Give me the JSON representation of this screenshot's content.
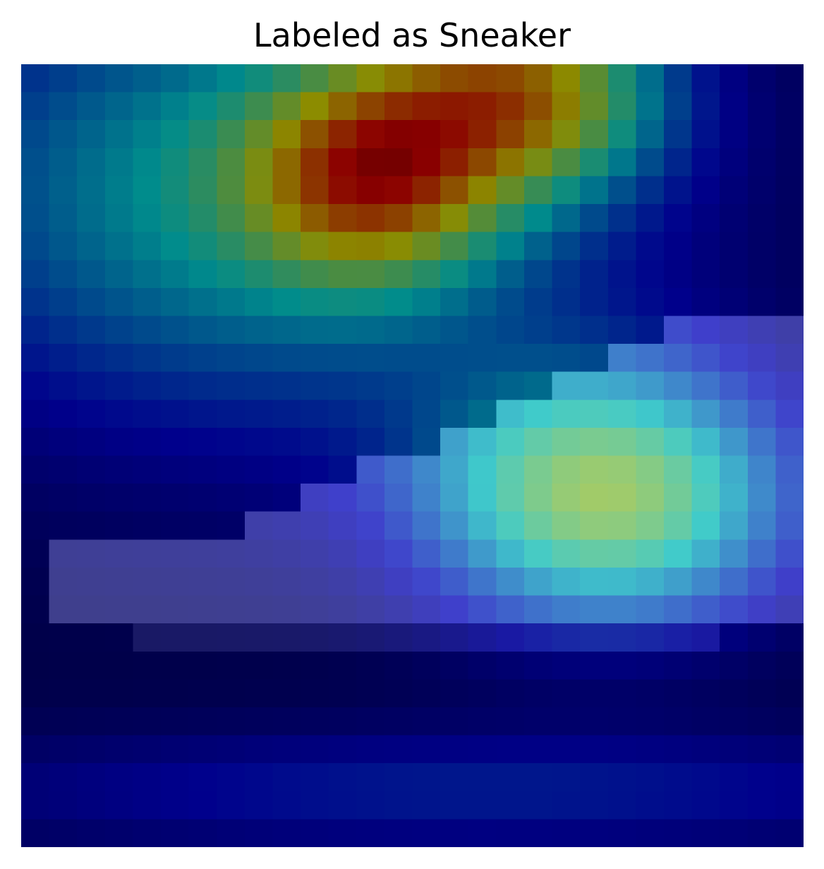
{
  "title": "Labeled as Sneaker",
  "image": {
    "description_icon": "sneaker-heatmap-image",
    "grid_size": 28,
    "palette_note": "jet colormap overlay on grayscale pixel image",
    "colors": {
      "background": "#ffffff",
      "dark_navy": "#00003a",
      "blue": "#000090",
      "teal": "#007f80",
      "olive": "#7f8000",
      "brown": "#7f3800",
      "cyan": "#70f0f0",
      "yellow": "#f8f870",
      "red": "#e86060",
      "lavender": "#7070b8"
    }
  }
}
